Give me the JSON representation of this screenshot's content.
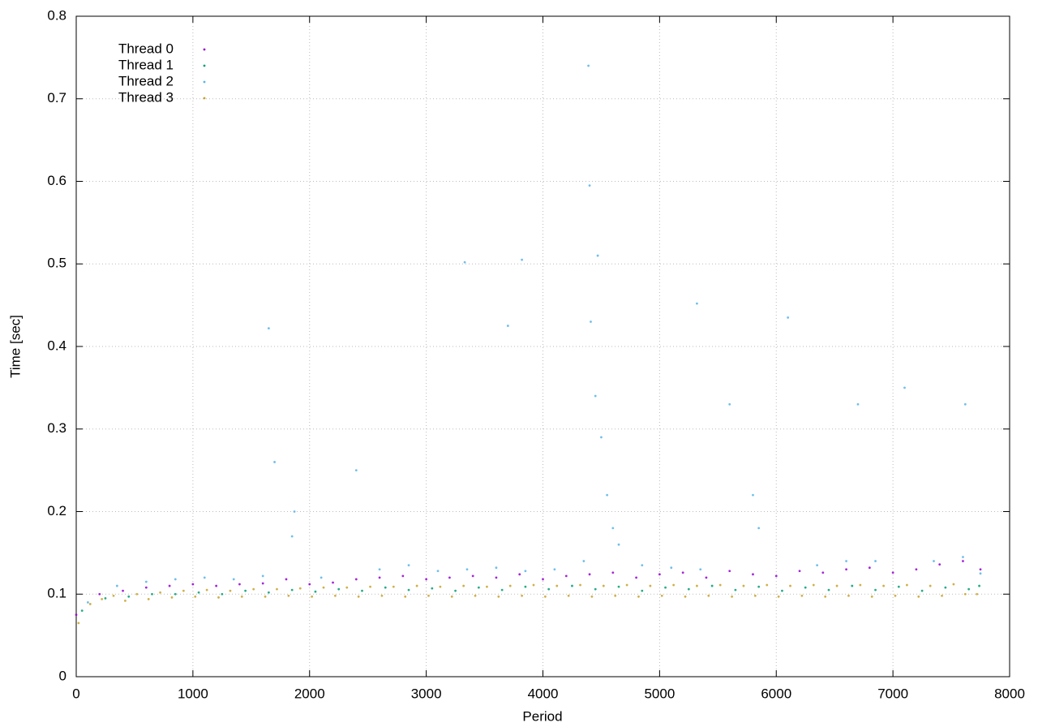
{
  "chart_data": {
    "type": "scatter",
    "x_label": "Period",
    "y_label": "Time [sec]",
    "xlim": [
      0,
      8000
    ],
    "ylim": [
      0,
      0.8
    ],
    "xticks": [
      0,
      1000,
      2000,
      3000,
      4000,
      5000,
      6000,
      7000,
      8000
    ],
    "yticks": [
      0,
      0.1,
      0.2,
      0.3,
      0.4,
      0.5,
      0.6,
      0.7,
      0.8
    ],
    "grid": true,
    "legend": "upper left",
    "series": [
      {
        "name": "Thread 0",
        "color": "#9400d3",
        "x": [
          0,
          200,
          400,
          600,
          800,
          1000,
          1200,
          1400,
          1600,
          1800,
          2000,
          2200,
          2400,
          2600,
          2800,
          3000,
          3200,
          3400,
          3600,
          3800,
          4000,
          4200,
          4400,
          4600,
          4800,
          5000,
          5200,
          5400,
          5600,
          5800,
          6000,
          6200,
          6400,
          6600,
          6800,
          7000,
          7200,
          7400,
          7600,
          7750
        ],
        "values": [
          0.075,
          0.1,
          0.104,
          0.108,
          0.11,
          0.112,
          0.11,
          0.112,
          0.113,
          0.118,
          0.112,
          0.114,
          0.118,
          0.12,
          0.122,
          0.118,
          0.12,
          0.122,
          0.12,
          0.124,
          0.118,
          0.122,
          0.124,
          0.126,
          0.12,
          0.124,
          0.126,
          0.12,
          0.128,
          0.124,
          0.122,
          0.128,
          0.126,
          0.13,
          0.132,
          0.126,
          0.13,
          0.136,
          0.14,
          0.13
        ]
      },
      {
        "name": "Thread 1",
        "color": "#009e73",
        "x": [
          50,
          250,
          450,
          650,
          850,
          1050,
          1250,
          1450,
          1650,
          1850,
          2050,
          2250,
          2450,
          2650,
          2850,
          3050,
          3250,
          3450,
          3650,
          3850,
          4050,
          4250,
          4450,
          4650,
          4850,
          5050,
          5250,
          5450,
          5650,
          5850,
          6050,
          6250,
          6450,
          6650,
          6850,
          7050,
          7250,
          7450,
          7650,
          7740
        ],
        "values": [
          0.08,
          0.095,
          0.097,
          0.1,
          0.1,
          0.102,
          0.1,
          0.104,
          0.102,
          0.105,
          0.103,
          0.106,
          0.104,
          0.108,
          0.105,
          0.107,
          0.104,
          0.108,
          0.105,
          0.109,
          0.106,
          0.11,
          0.106,
          0.109,
          0.104,
          0.108,
          0.106,
          0.11,
          0.105,
          0.109,
          0.104,
          0.108,
          0.105,
          0.11,
          0.105,
          0.109,
          0.104,
          0.108,
          0.106,
          0.11
        ]
      },
      {
        "name": "Thread 2",
        "color": "#56b4e9",
        "x": [
          100,
          350,
          600,
          850,
          1100,
          1350,
          1600,
          1650,
          1700,
          1850,
          1870,
          2100,
          2400,
          2600,
          2850,
          3100,
          3330,
          3350,
          3600,
          3700,
          3820,
          3850,
          4100,
          4350,
          4390,
          4400,
          4410,
          4450,
          4470,
          4500,
          4550,
          4600,
          4650,
          4850,
          5100,
          5320,
          5350,
          5600,
          5800,
          5850,
          6100,
          6350,
          6600,
          6700,
          6850,
          7100,
          7350,
          7600,
          7620,
          7750
        ],
        "values": [
          0.09,
          0.11,
          0.115,
          0.118,
          0.12,
          0.118,
          0.122,
          0.422,
          0.26,
          0.17,
          0.2,
          0.12,
          0.25,
          0.13,
          0.135,
          0.128,
          0.502,
          0.13,
          0.132,
          0.425,
          0.505,
          0.128,
          0.13,
          0.14,
          0.74,
          0.595,
          0.43,
          0.34,
          0.51,
          0.29,
          0.22,
          0.18,
          0.16,
          0.135,
          0.132,
          0.452,
          0.13,
          0.33,
          0.22,
          0.18,
          0.435,
          0.135,
          0.14,
          0.33,
          0.14,
          0.35,
          0.14,
          0.145,
          0.33,
          0.125
        ]
      },
      {
        "name": "Thread 3",
        "color": "#c8a228",
        "x": [
          20,
          120,
          220,
          320,
          420,
          520,
          620,
          720,
          820,
          920,
          1020,
          1120,
          1220,
          1320,
          1420,
          1520,
          1620,
          1720,
          1820,
          1920,
          2020,
          2120,
          2220,
          2320,
          2420,
          2520,
          2620,
          2720,
          2820,
          2920,
          3020,
          3120,
          3220,
          3320,
          3420,
          3520,
          3620,
          3720,
          3820,
          3920,
          4020,
          4120,
          4220,
          4320,
          4420,
          4520,
          4620,
          4720,
          4820,
          4920,
          5020,
          5120,
          5220,
          5320,
          5420,
          5520,
          5620,
          5720,
          5820,
          5920,
          6020,
          6120,
          6220,
          6320,
          6420,
          6520,
          6620,
          6720,
          6820,
          6920,
          7020,
          7120,
          7220,
          7320,
          7420,
          7520,
          7620,
          7720
        ],
        "values": [
          0.065,
          0.088,
          0.094,
          0.098,
          0.092,
          0.1,
          0.094,
          0.102,
          0.096,
          0.104,
          0.097,
          0.105,
          0.096,
          0.104,
          0.097,
          0.106,
          0.097,
          0.106,
          0.098,
          0.107,
          0.097,
          0.108,
          0.098,
          0.108,
          0.097,
          0.109,
          0.098,
          0.109,
          0.097,
          0.11,
          0.098,
          0.109,
          0.097,
          0.11,
          0.098,
          0.109,
          0.097,
          0.11,
          0.098,
          0.111,
          0.097,
          0.11,
          0.098,
          0.111,
          0.097,
          0.11,
          0.098,
          0.111,
          0.097,
          0.11,
          0.098,
          0.111,
          0.097,
          0.11,
          0.098,
          0.111,
          0.097,
          0.11,
          0.098,
          0.111,
          0.097,
          0.11,
          0.098,
          0.111,
          0.097,
          0.11,
          0.098,
          0.111,
          0.097,
          0.11,
          0.098,
          0.111,
          0.097,
          0.11,
          0.098,
          0.112,
          0.1,
          0.1
        ]
      }
    ]
  }
}
